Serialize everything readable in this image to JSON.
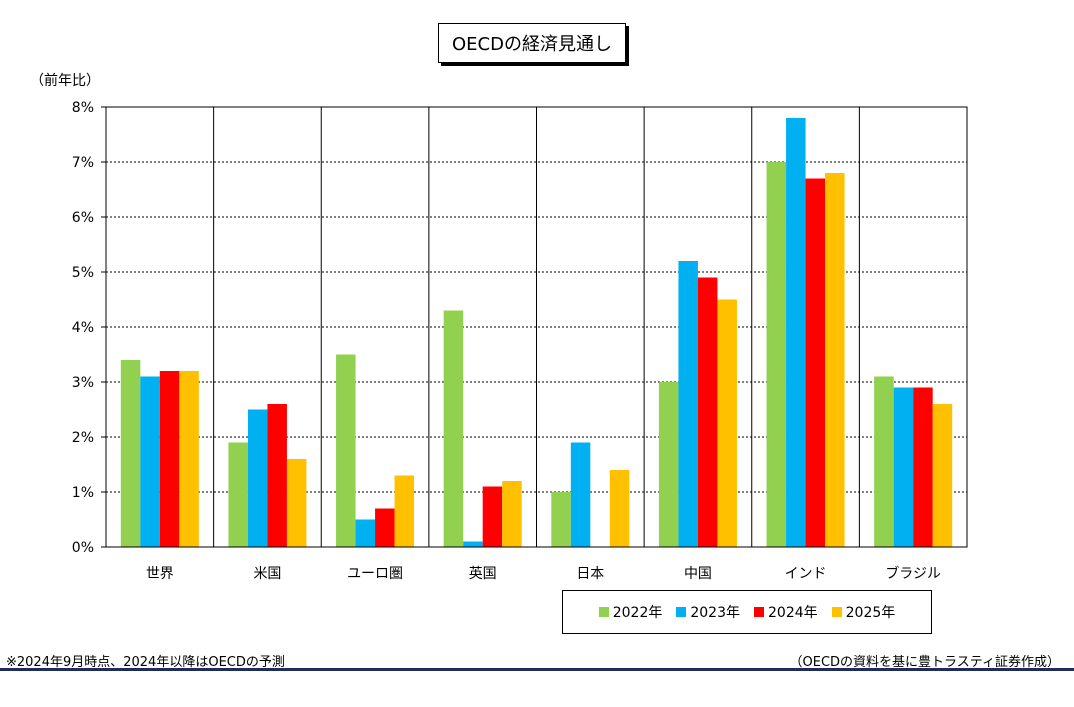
{
  "chart_data": {
    "type": "bar",
    "title": "OECDの経済見通し",
    "ylabel": "（前年比）",
    "ylim": [
      0,
      8
    ],
    "yticks": [
      "0%",
      "1%",
      "2%",
      "3%",
      "4%",
      "5%",
      "6%",
      "7%",
      "8%"
    ],
    "grid": true,
    "legend": "bottom-right",
    "categories": [
      "世界",
      "米国",
      "ユーロ圏",
      "英国",
      "日本",
      "中国",
      "インド",
      "ブラジル"
    ],
    "series": [
      {
        "name": "2022年",
        "color": "#92d050",
        "values": [
          3.4,
          1.9,
          3.5,
          4.3,
          1.0,
          3.0,
          7.0,
          3.1
        ]
      },
      {
        "name": "2023年",
        "color": "#00b0f0",
        "values": [
          3.1,
          2.5,
          0.5,
          0.1,
          1.9,
          5.2,
          7.8,
          2.9
        ]
      },
      {
        "name": "2024年",
        "color": "#ff0000",
        "values": [
          3.2,
          2.6,
          0.7,
          1.1,
          0.0,
          4.9,
          6.7,
          2.9
        ]
      },
      {
        "name": "2025年",
        "color": "#ffc000",
        "values": [
          3.2,
          1.6,
          1.3,
          1.2,
          1.4,
          4.5,
          6.8,
          2.6
        ]
      }
    ]
  },
  "footnote": {
    "left": "※2024年9月時点、2024年以降はOECDの予測",
    "right": "（OECDの資料を基に豊トラスティ証券作成）"
  }
}
